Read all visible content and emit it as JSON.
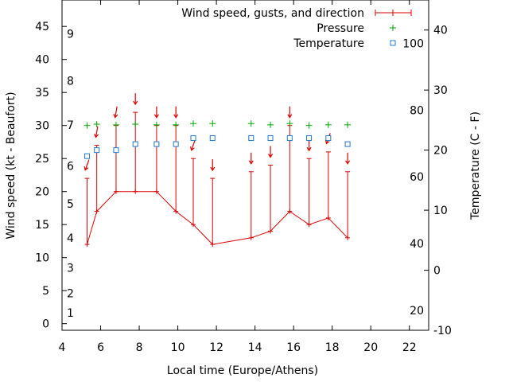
{
  "chart_data": {
    "type": "line",
    "xlabel": "Local time (Europe/Athens)",
    "ylabel": "Wind speed (kt - Beaufort)",
    "y2label": "Temperature (C - F)",
    "xlim": [
      4,
      23
    ],
    "ylim": [
      -1,
      49
    ],
    "y2lim": [
      -10,
      45
    ],
    "x_ticks": [
      4,
      6,
      8,
      10,
      12,
      14,
      16,
      18,
      20,
      22
    ],
    "y_ticks": [
      0,
      5,
      10,
      15,
      20,
      25,
      30,
      35,
      40,
      45
    ],
    "beaufort_ticks": [
      1,
      2,
      3,
      4,
      5,
      6,
      7,
      8,
      9
    ],
    "y2_celsius_ticks": [
      -10,
      0,
      10,
      20,
      30,
      40
    ],
    "y2_fahrenheit_ticks": [
      20,
      40,
      60,
      80,
      100
    ],
    "legend_position": "top-right",
    "grid": false,
    "legend": {
      "wind": "Wind speed, gusts, and direction",
      "pressure": "Pressure",
      "temperature": "Temperature"
    },
    "colors": {
      "wind": "#dd0000",
      "pressure": "#00aa00",
      "temperature": "#1f77d0"
    },
    "series": [
      {
        "name": "Wind speed, gusts, and direction",
        "x": [
          5.3,
          5.8,
          6.8,
          7.8,
          8.9,
          9.9,
          10.8,
          11.8,
          13.8,
          14.8,
          15.8,
          16.8,
          17.8,
          18.8
        ],
        "values": [
          12,
          17,
          20,
          20,
          20,
          17,
          15,
          12,
          13,
          14,
          17,
          15,
          16,
          13
        ],
        "gusts": [
          22,
          27,
          30,
          32,
          30,
          30,
          25,
          22,
          23,
          24,
          30,
          25,
          26,
          23
        ],
        "direction_deg": [
          20,
          10,
          10,
          0,
          0,
          0,
          20,
          0,
          0,
          0,
          0,
          0,
          20,
          0
        ]
      },
      {
        "name": "Pressure",
        "x": [
          5.3,
          5.8,
          6.8,
          7.8,
          8.9,
          9.9,
          10.8,
          11.8,
          13.8,
          14.8,
          15.8,
          16.8,
          17.8,
          18.8
        ],
        "values": [
          30.0,
          30.2,
          30.1,
          30.2,
          30.1,
          30.1,
          30.3,
          30.3,
          30.3,
          30.1,
          30.3,
          30.0,
          30.1,
          30.1
        ]
      },
      {
        "name": "Temperature",
        "x": [
          5.3,
          5.8,
          6.8,
          7.8,
          8.9,
          9.9,
          10.8,
          11.8,
          13.8,
          14.8,
          15.8,
          16.8,
          17.8,
          18.8
        ],
        "values": [
          19,
          20,
          20,
          21,
          21,
          21,
          22,
          22,
          22,
          22,
          22,
          22,
          22,
          21
        ]
      }
    ]
  }
}
